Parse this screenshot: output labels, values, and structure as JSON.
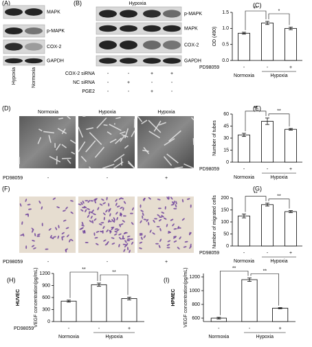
{
  "figure": {
    "A": {
      "label": "(A)",
      "bands": [
        "MAPK",
        "p-MAPK",
        "COX-2",
        "GAPDH"
      ],
      "lanes": [
        "Hypoxia",
        "Normoxia"
      ]
    },
    "B": {
      "label": "(B)",
      "title": "Hypoxia",
      "bands": [
        "p-MAPK",
        "MAPK",
        "COX-2",
        "GAPDH"
      ],
      "conditions": [
        {
          "name": "COX-2 siRNA",
          "signs": [
            "-",
            "-",
            "+",
            "+"
          ]
        },
        {
          "name": "NC siRNA",
          "signs": [
            "-",
            "+",
            "-",
            "-"
          ]
        },
        {
          "name": "PGE2",
          "signs": [
            "-",
            "-",
            "+",
            "-"
          ]
        }
      ]
    },
    "D": {
      "label": "(D)",
      "titles": [
        "Normoxia",
        "Hypoxia",
        "Hypoxia"
      ],
      "row_label": "PD98059",
      "signs": [
        "-",
        "-",
        "+"
      ]
    },
    "F": {
      "label": "(F)",
      "row_label": "PD98059",
      "signs": [
        "-",
        "-",
        "+"
      ]
    }
  },
  "chart_data": [
    {
      "type": "bar",
      "panel": "(C)",
      "ylabel": "OD (490)",
      "categories": [
        "-",
        "-",
        "+"
      ],
      "values": [
        0.85,
        1.17,
        1.0
      ],
      "errors": [
        0.03,
        0.05,
        0.04
      ],
      "ylim": [
        0,
        1.5
      ],
      "yticks": [
        {
          "value": 0,
          "label": "0.0"
        },
        {
          "value": 0.5,
          "label": "0.5"
        },
        {
          "value": 1,
          "label": "1.0"
        },
        {
          "value": 1.5,
          "label": "1.5"
        }
      ],
      "row_label": "PD98059",
      "groups": [
        "Normoxia",
        "Hypoxia"
      ],
      "significance": [
        "**",
        "*"
      ],
      "color": "#ffffff"
    },
    {
      "type": "bar",
      "panel": "(E)",
      "ylabel": "Number of tubes",
      "categories": [
        "-",
        "-",
        "+"
      ],
      "values": [
        34,
        51,
        41
      ],
      "errors": [
        2,
        4,
        1
      ],
      "ylim": [
        0,
        60
      ],
      "yticks": [
        0,
        15,
        30,
        45,
        60
      ],
      "row_label": "PD98059",
      "groups": [
        "Normoxia",
        "Hypoxia"
      ],
      "significance": [
        "**",
        "**"
      ],
      "color": "#ffffff"
    },
    {
      "type": "bar",
      "panel": "(G)",
      "ylabel": "Number of migrated cells",
      "categories": [
        "-",
        "-",
        "+"
      ],
      "values": [
        125,
        172,
        143
      ],
      "errors": [
        8,
        6,
        4
      ],
      "ylim": [
        0,
        200
      ],
      "yticks": [
        0,
        50,
        100,
        150,
        200
      ],
      "row_label": "PD98059",
      "groups": [
        "Normoxia",
        "Hypoxia"
      ],
      "significance": [
        "**",
        "**"
      ],
      "color": "#ffffff"
    },
    {
      "type": "bar",
      "panel": "(H)",
      "cell": "HUVEC",
      "ylabel": "VEGF concentration(pg/mL)",
      "categories": [
        "-",
        "-",
        "+"
      ],
      "values": [
        510,
        920,
        575
      ],
      "errors": [
        25,
        40,
        35
      ],
      "ylim": [
        0,
        1200
      ],
      "yticks": [
        0,
        300,
        600,
        900,
        1200
      ],
      "row_label": "PD98059",
      "groups": [
        "Normoxia",
        "Hypoxia"
      ],
      "significance": [
        "**",
        "**"
      ],
      "color": "#ffffff"
    },
    {
      "type": "bar",
      "panel": "(I)",
      "cell": "HPMEC",
      "ylabel": "VEGF concentration(pg/mL)",
      "categories": [
        "-",
        "-",
        "+"
      ],
      "values": [
        600,
        1160,
        745
      ],
      "errors": [
        12,
        25,
        8
      ],
      "ylim": [
        550,
        1250
      ],
      "yticks": [
        600,
        800,
        1000,
        1200
      ],
      "groups": [
        "Normoxia",
        "Hypoxia"
      ],
      "significance": [
        "**",
        "**"
      ],
      "color": "#ffffff"
    }
  ]
}
